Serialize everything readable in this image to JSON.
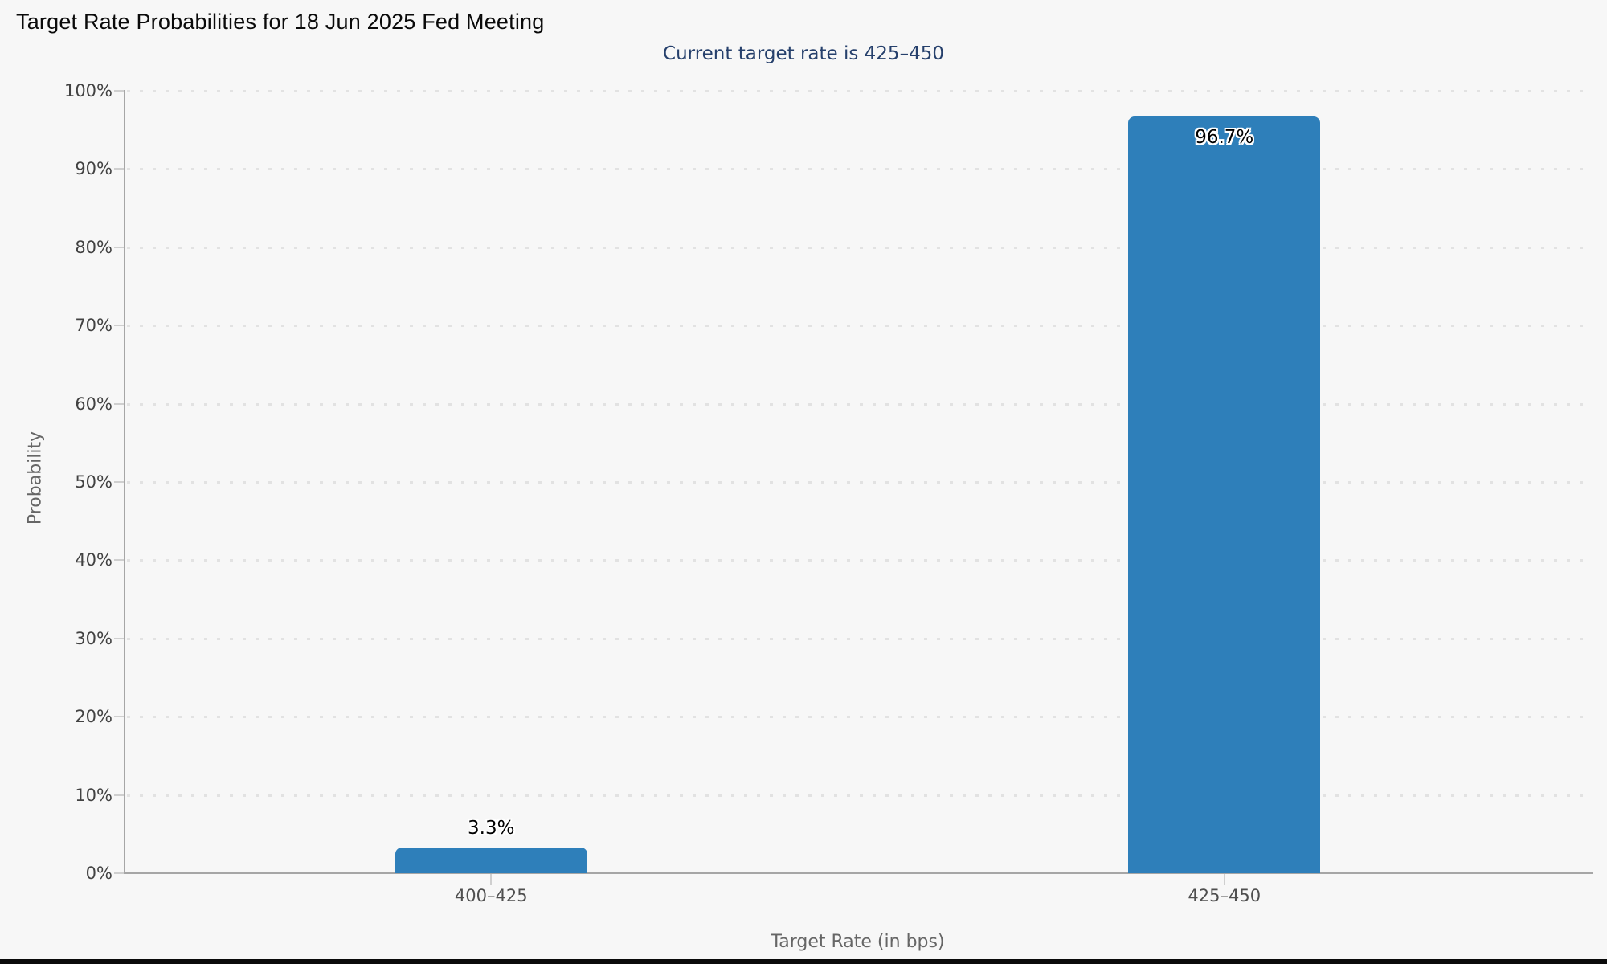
{
  "chart_data": {
    "type": "bar",
    "title": "Target Rate Probabilities for 18 Jun 2025 Fed Meeting",
    "subtitle": "Current target rate is 425–450",
    "categories": [
      "400–425",
      "425–450"
    ],
    "values": [
      3.3,
      96.7
    ],
    "value_labels": [
      "3.3%",
      "96.7%"
    ],
    "xlabel": "Target Rate (in bps)",
    "ylabel": "Probability",
    "ylim": [
      0,
      100
    ],
    "ytick_step": 10,
    "ytick_suffix": "%",
    "grid": "horizontal dotted",
    "legend": "none"
  },
  "colors": {
    "background": "#f7f7f7",
    "bar": "#2e7fba",
    "subtitle": "#26406c",
    "axis_line": "#a6a6a6",
    "grid_dot": "#e2e2e2",
    "tick": "#cfcfcf",
    "ytick_label": "#424242",
    "xtick_label": "#4f4f4f",
    "axis_title": "#666666",
    "bottom_strip": "#0a0a0a"
  }
}
